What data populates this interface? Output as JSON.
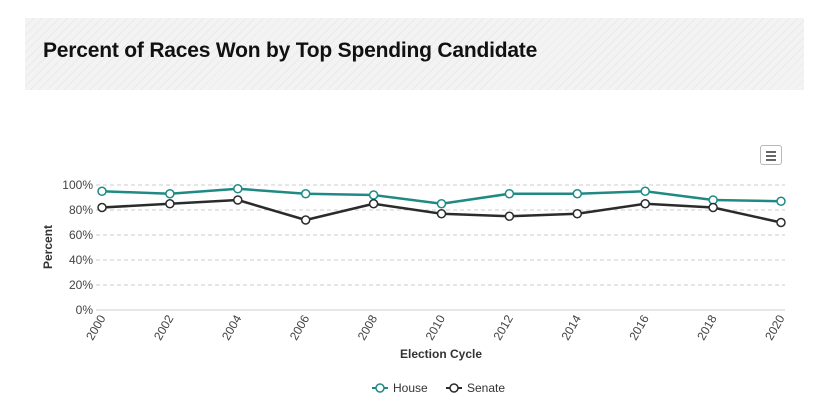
{
  "header": {
    "title": "Percent of Races Won by Top Spending Candidate"
  },
  "chart_data": {
    "type": "line",
    "title": "Percent of Races Won by Top Spending Candidate",
    "xlabel": "Election Cycle",
    "ylabel": "Percent",
    "categories": [
      "2000",
      "2002",
      "2004",
      "2006",
      "2008",
      "2010",
      "2012",
      "2014",
      "2016",
      "2018",
      "2020"
    ],
    "ylim": [
      0,
      100
    ],
    "y_ticks": [
      0,
      20,
      40,
      60,
      80,
      100
    ],
    "y_tick_labels": [
      "0%",
      "20%",
      "40%",
      "60%",
      "80%",
      "100%"
    ],
    "grid": true,
    "legend_position": "bottom-center",
    "series": [
      {
        "name": "House",
        "color": "#1f8a85",
        "values": [
          95,
          93,
          97,
          93,
          92,
          85,
          93,
          93,
          95,
          88,
          87
        ]
      },
      {
        "name": "Senate",
        "color": "#2b2b2b",
        "values": [
          82,
          85,
          88,
          72,
          85,
          77,
          75,
          77,
          85,
          82,
          70
        ]
      }
    ]
  },
  "icons": {
    "menu": "hamburger-menu-icon"
  }
}
